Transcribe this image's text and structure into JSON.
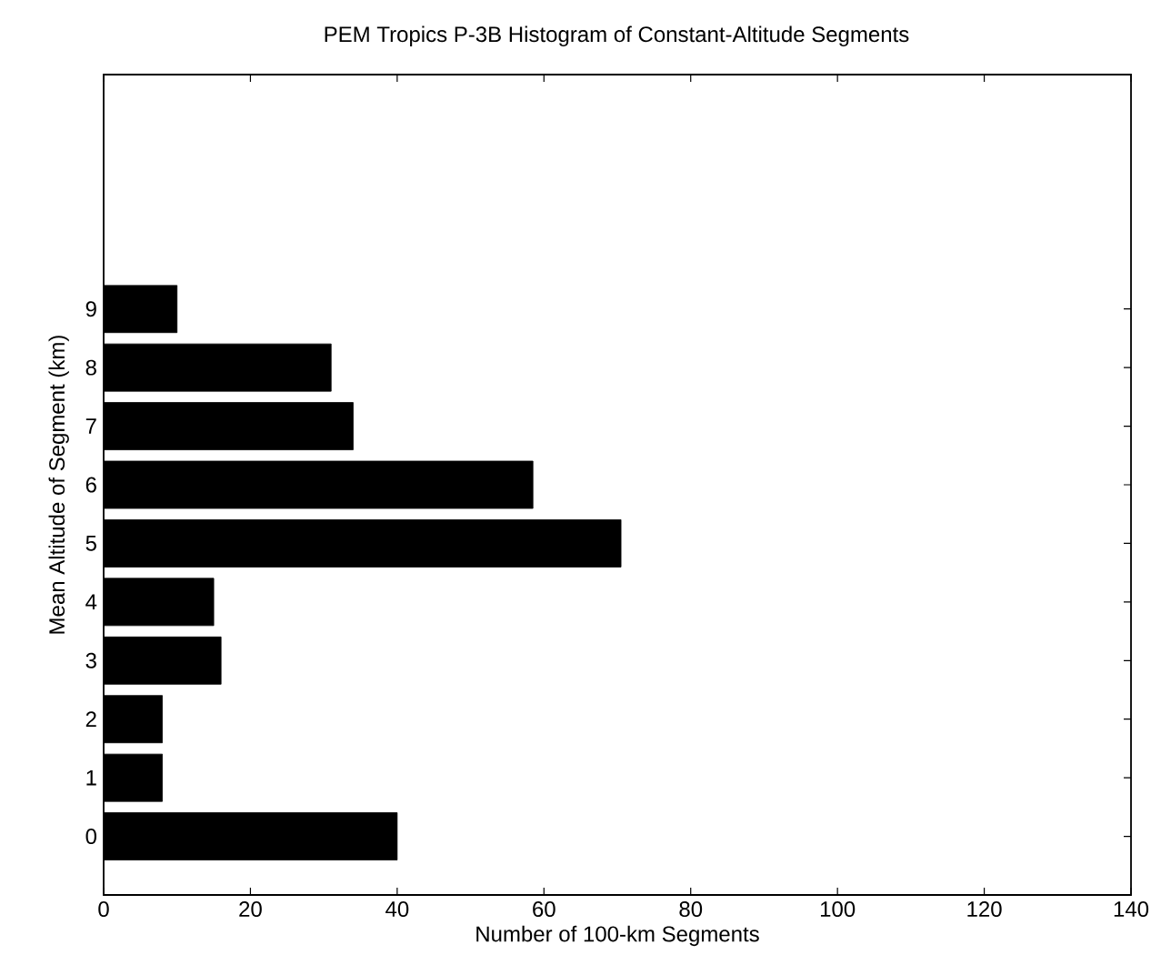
{
  "chart_data": {
    "type": "bar",
    "orientation": "horizontal",
    "title": "PEM Tropics     P-3B     Histogram of Constant-Altitude Segments",
    "xlabel": "Number of 100-km Segments",
    "ylabel": "Mean Altitude of Segment (km)",
    "categories": [
      "9",
      "8",
      "7",
      "6",
      "5",
      "4",
      "3",
      "2",
      "1",
      "0"
    ],
    "values": [
      10,
      31,
      34,
      58.5,
      70.5,
      15,
      16,
      8,
      8,
      40
    ],
    "color": "#000000",
    "xlim": [
      0,
      140
    ],
    "xticks": [
      0,
      20,
      40,
      60,
      80,
      100,
      120,
      140
    ]
  }
}
